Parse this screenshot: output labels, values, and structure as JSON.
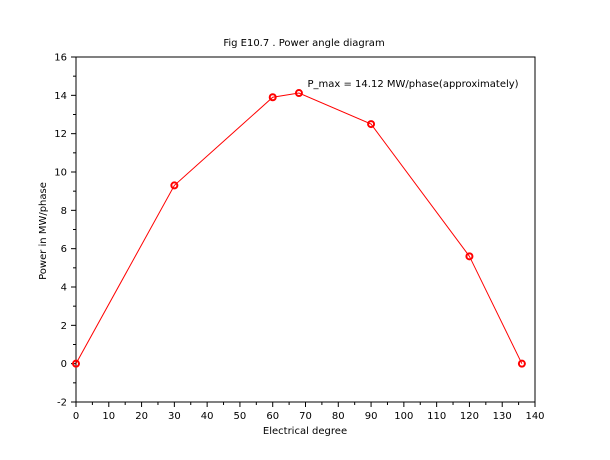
{
  "chart_data": {
    "type": "line",
    "title": "Fig E10.7 . Power angle diagram",
    "xlabel": "Electrical degree",
    "ylabel": "Power in MW/phase",
    "xlim": [
      0,
      140
    ],
    "ylim": [
      -2,
      16
    ],
    "xticks": [
      0,
      10,
      20,
      30,
      40,
      50,
      60,
      70,
      80,
      90,
      100,
      110,
      120,
      130,
      140
    ],
    "yticks": [
      -2,
      0,
      2,
      4,
      6,
      8,
      10,
      12,
      14,
      16
    ],
    "grid": false,
    "series": [
      {
        "x": [
          0,
          30,
          60,
          68,
          90,
          120,
          136
        ],
        "y": [
          0,
          9.3,
          13.9,
          14.12,
          12.5,
          5.6,
          0
        ],
        "color": "#ff0000",
        "marker": "circle"
      }
    ],
    "annotation": {
      "text": "P_max = 14.12 MW/phase(approximately)",
      "x": 70,
      "y": 14.12
    }
  }
}
